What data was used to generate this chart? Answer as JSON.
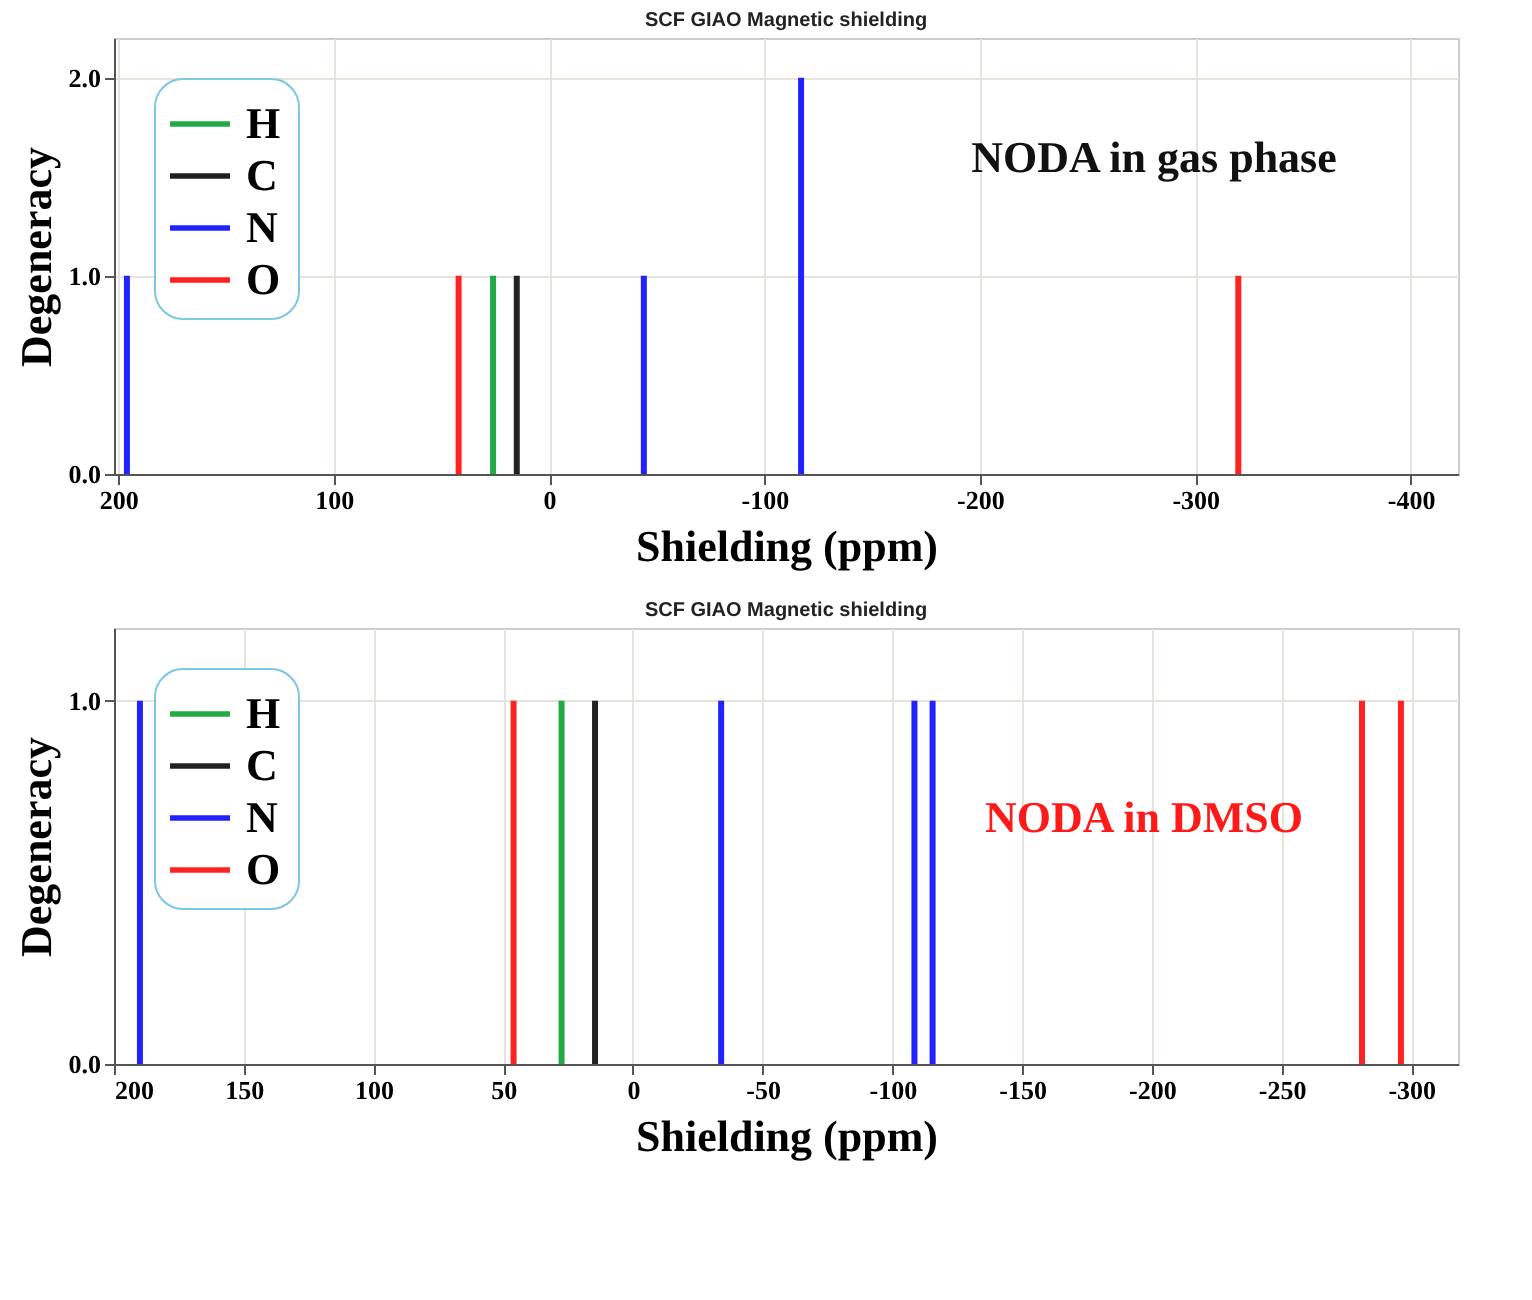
{
  "chart_data": [
    {
      "type": "bar",
      "title": "SCF GIAO Magnetic shielding",
      "xlabel": "Shielding (ppm)",
      "ylabel": "Degeneracy",
      "xlim": [
        202,
        -422
      ],
      "xticks": [
        200,
        100,
        0,
        -100,
        -200,
        -300,
        -400
      ],
      "ylim": [
        0,
        2.2
      ],
      "yticks": [
        {
          "value": 0,
          "label": "0.0"
        },
        {
          "value": 1,
          "label": "1.0"
        },
        {
          "value": 2,
          "label": "2.0"
        }
      ],
      "grid": true,
      "legend": "top left",
      "annotations": [
        "NODA in gas phase"
      ],
      "series": [
        {
          "name": "H",
          "color": "#22aa44",
          "x": [
            26
          ],
          "values": [
            1
          ]
        },
        {
          "name": "C",
          "color": "#222222",
          "x": [
            15
          ],
          "values": [
            1
          ]
        },
        {
          "name": "N",
          "color": "#2222ff",
          "x": [
            196,
            -44,
            -117
          ],
          "values": [
            1,
            1,
            2
          ]
        },
        {
          "name": "O",
          "color": "#ff2222",
          "x": [
            42,
            -320
          ],
          "values": [
            1,
            1
          ]
        }
      ]
    },
    {
      "type": "bar",
      "title": "SCF GIAO Magnetic shielding",
      "xlabel": "Shielding (ppm)",
      "ylabel": "Degeneracy",
      "xlim": [
        200,
        -318
      ],
      "xticks": [
        200,
        150,
        100,
        50,
        0,
        -50,
        -100,
        -150,
        -200,
        -250,
        -300
      ],
      "ylim": [
        0,
        1.2
      ],
      "yticks": [
        {
          "value": 0,
          "label": "0.0"
        },
        {
          "value": 1,
          "label": "1.0"
        }
      ],
      "grid": true,
      "legend": "top left",
      "annotations": [
        "NODA in DMSO"
      ],
      "series": [
        {
          "name": "H",
          "color": "#22aa44",
          "x": [
            27.5
          ],
          "values": [
            1
          ]
        },
        {
          "name": "C",
          "color": "#222222",
          "x": [
            14.6
          ],
          "values": [
            1
          ]
        },
        {
          "name": "N",
          "color": "#2222ff",
          "x": [
            190,
            -34,
            -108.5,
            -115.5
          ],
          "values": [
            1,
            1,
            1,
            1
          ]
        },
        {
          "name": "O",
          "color": "#ff2222",
          "x": [
            46,
            -281,
            -296
          ],
          "values": [
            1,
            1,
            1
          ]
        }
      ]
    }
  ]
}
